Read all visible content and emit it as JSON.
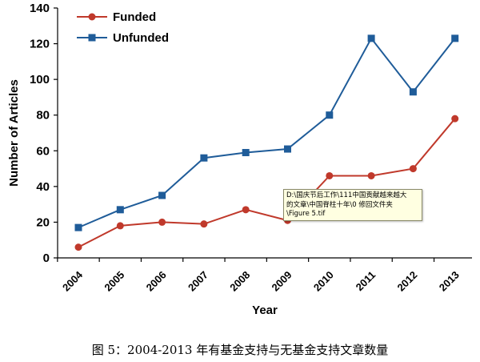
{
  "chart_data": {
    "type": "line",
    "title": "",
    "xlabel": "Year",
    "ylabel": "Number of Articles",
    "categories": [
      "2004",
      "2005",
      "2006",
      "2007",
      "2008",
      "2009",
      "2010",
      "2011",
      "2012",
      "2013"
    ],
    "ylim": [
      0,
      140
    ],
    "yticks": [
      0,
      20,
      40,
      60,
      80,
      100,
      120,
      140
    ],
    "grid": false,
    "legend_position": "top-left",
    "series": [
      {
        "name": "Funded",
        "color": "#c0392b",
        "marker": "circle",
        "values": [
          6,
          18,
          20,
          19,
          27,
          21,
          46,
          46,
          50,
          78
        ]
      },
      {
        "name": "Unfunded",
        "color": "#1f5c99",
        "marker": "square",
        "values": [
          17,
          27,
          35,
          56,
          59,
          61,
          80,
          123,
          93,
          123
        ]
      }
    ]
  },
  "tooltip": {
    "lines": [
      "D:\\国庆节后工作\\111中国贡献越来越大",
      "的文章\\中国脊柱十年\\0 修回文件夹",
      "\\Figure 5.tif"
    ]
  },
  "caption": "图 5：2004-2013 年有基金支持与无基金支持文章数量"
}
